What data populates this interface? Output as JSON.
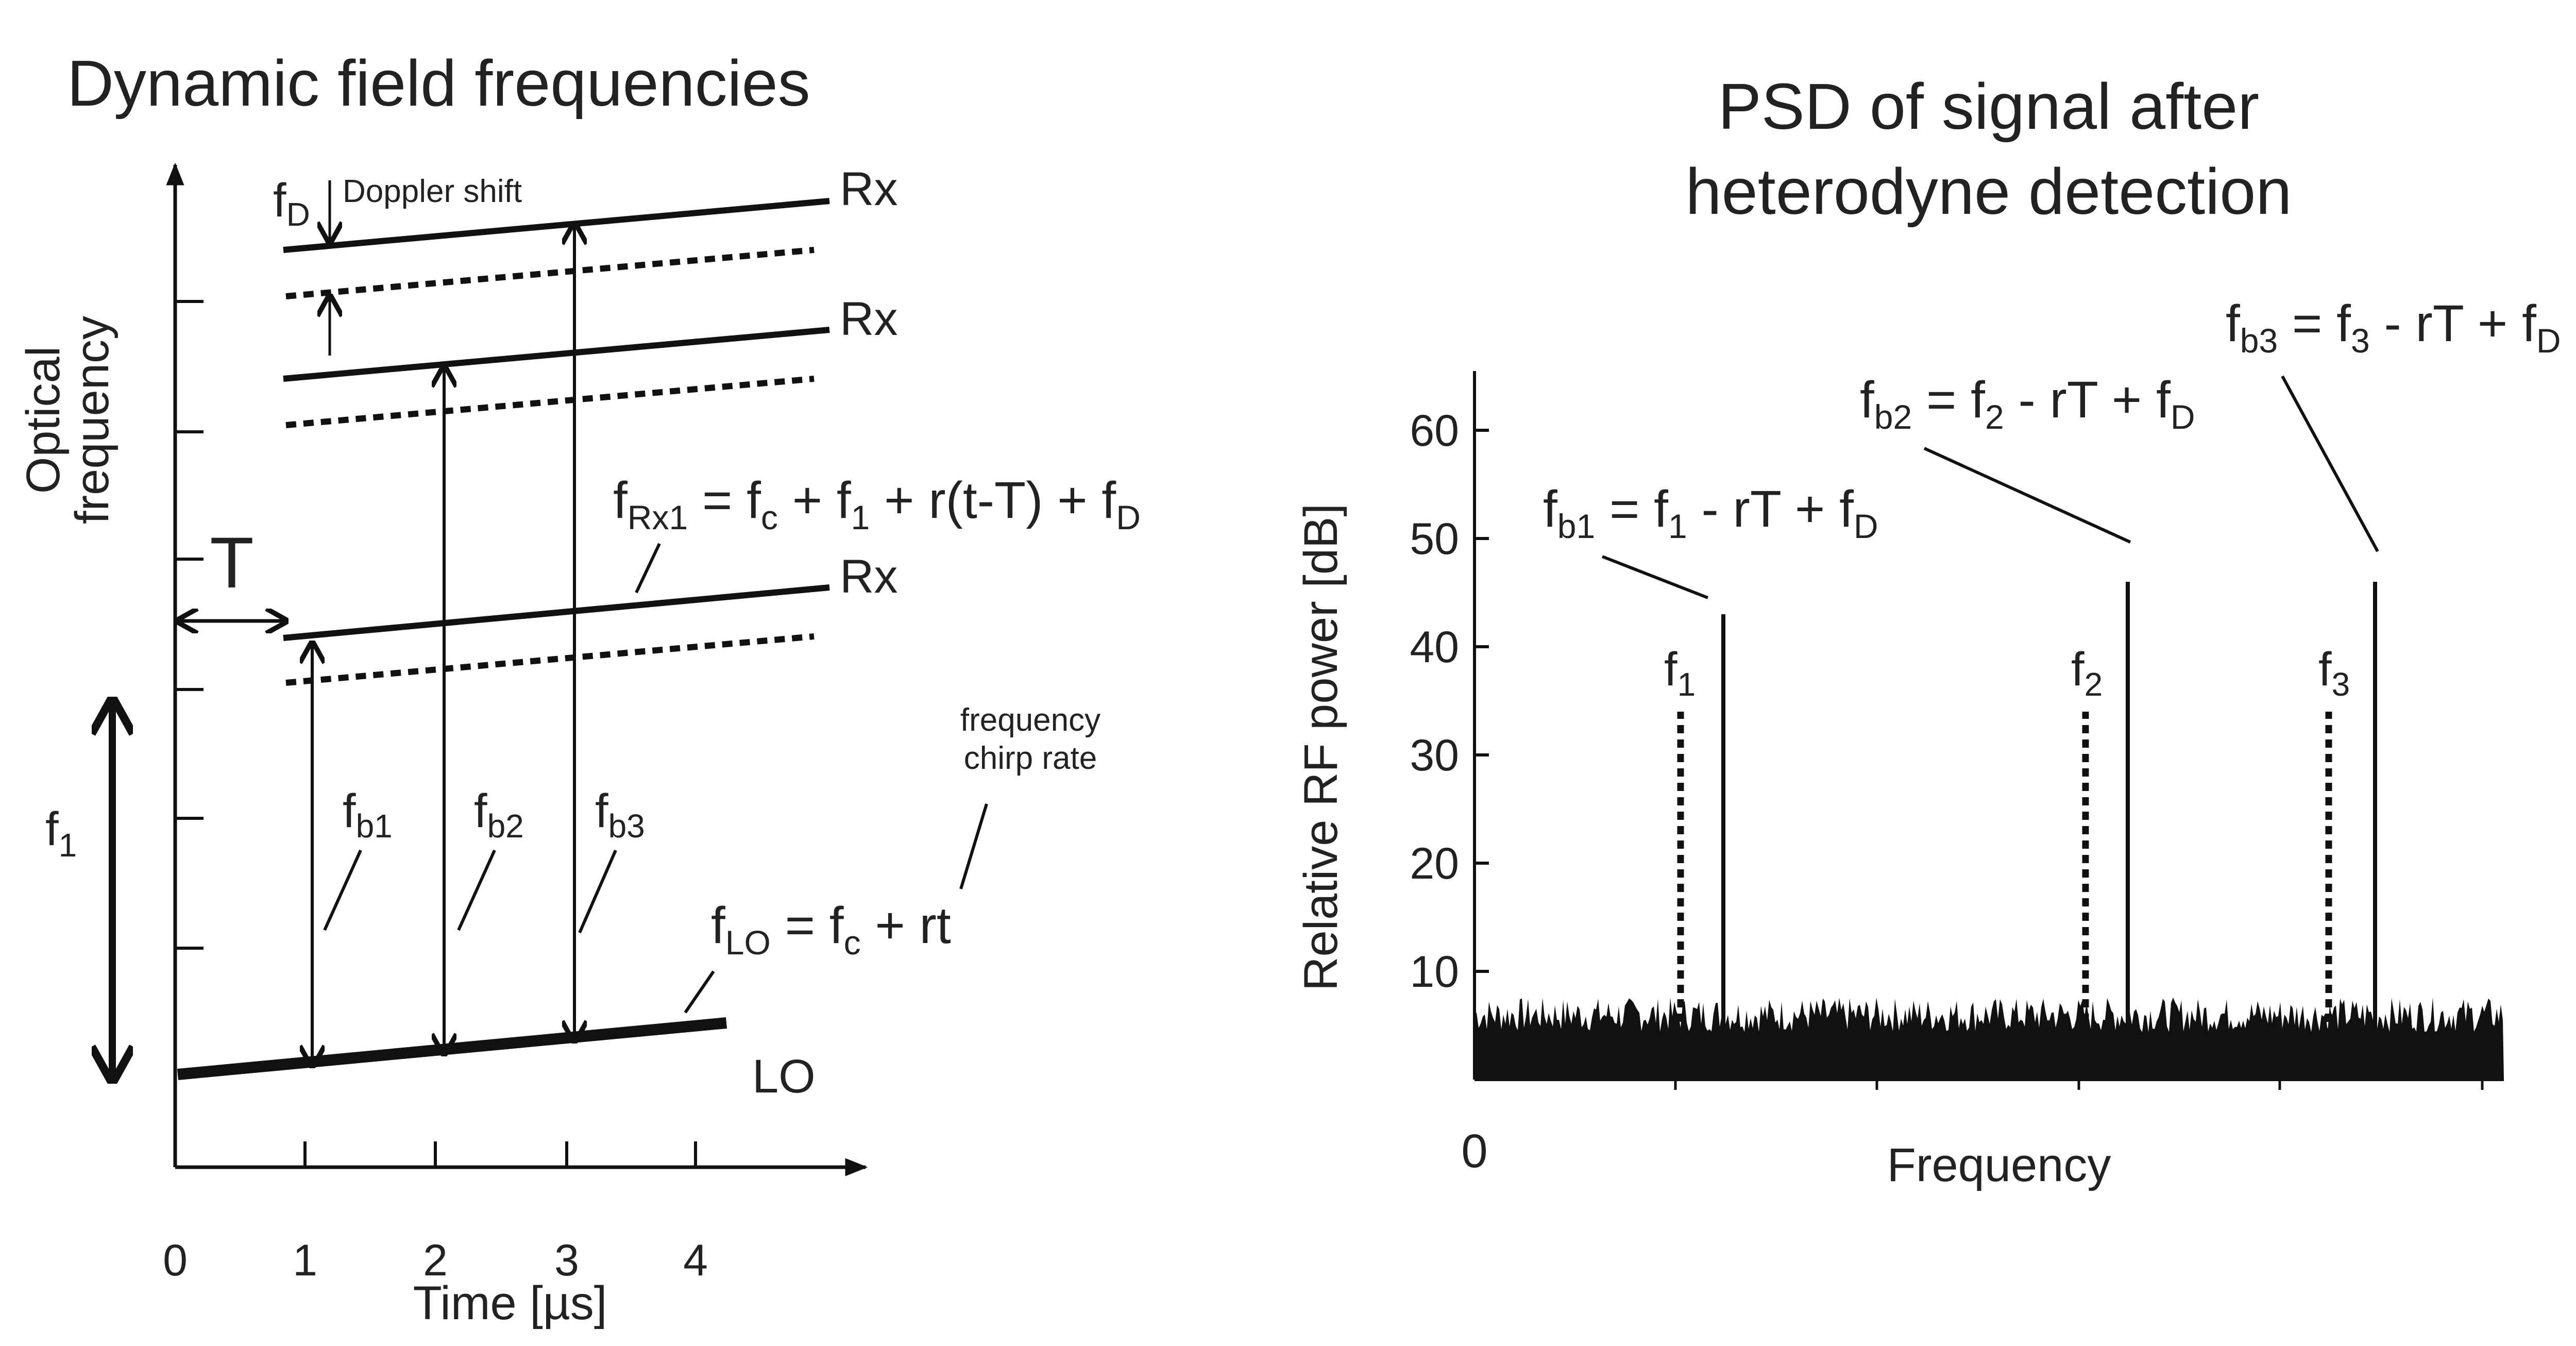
{
  "left_panel": {
    "title": "Dynamic field frequencies",
    "y_axis_label_lines": [
      "Optical",
      "frequency"
    ],
    "x_axis_label": "Time [µs]",
    "x_ticks": [
      "0",
      "1",
      "2",
      "3",
      "4"
    ],
    "delay_label": "T",
    "f1_label": "f",
    "f1_sub": "1",
    "rx_labels": [
      "Rx",
      "Rx",
      "Rx"
    ],
    "lo_label": "LO",
    "doppler_symbol": "f",
    "doppler_sub": "D",
    "doppler_text": "Doppler shift",
    "chirp_rate_lines": [
      "frequency",
      "chirp rate"
    ],
    "beat_labels": [
      {
        "base": "f",
        "sub": "b1"
      },
      {
        "base": "f",
        "sub": "b2"
      },
      {
        "base": "f",
        "sub": "b3"
      }
    ],
    "eq_rx1": {
      "parts": [
        {
          "t": "f"
        },
        {
          "t": "Rx1",
          "sub": true
        },
        {
          "t": " = f"
        },
        {
          "t": "c",
          "sub": true
        },
        {
          "t": " + f"
        },
        {
          "t": "1",
          "sub": true
        },
        {
          "t": " + r(t-T) + f"
        },
        {
          "t": "D",
          "sub": true
        }
      ]
    },
    "eq_lo": {
      "parts": [
        {
          "t": "f"
        },
        {
          "t": "LO",
          "sub": true
        },
        {
          "t": " = f"
        },
        {
          "t": "c",
          "sub": true
        },
        {
          "t": " + rt"
        }
      ]
    }
  },
  "right_panel": {
    "title_lines": [
      "PSD of signal after",
      "heterodyne detection"
    ],
    "y_axis_label": "Relative RF power [dB]",
    "x_axis_label": "Frequency",
    "x_tick_zero": "0",
    "y_ticks": [
      "10",
      "20",
      "30",
      "40",
      "50",
      "60"
    ],
    "peak_labels": [
      {
        "base": "f",
        "sub": "1"
      },
      {
        "base": "f",
        "sub": "2"
      },
      {
        "base": "f",
        "sub": "3"
      }
    ],
    "eq_b1": {
      "parts": [
        {
          "t": "f"
        },
        {
          "t": "b1",
          "sub": true
        },
        {
          "t": " = f"
        },
        {
          "t": "1",
          "sub": true
        },
        {
          "t": " - rT + f"
        },
        {
          "t": "D",
          "sub": true
        }
      ]
    },
    "eq_b2": {
      "parts": [
        {
          "t": "f"
        },
        {
          "t": "b2",
          "sub": true
        },
        {
          "t": " = f"
        },
        {
          "t": "2",
          "sub": true
        },
        {
          "t": " - rT + f"
        },
        {
          "t": "D",
          "sub": true
        }
      ]
    },
    "eq_b3": {
      "parts": [
        {
          "t": "f"
        },
        {
          "t": "b3",
          "sub": true
        },
        {
          "t": " = f"
        },
        {
          "t": "3",
          "sub": true
        },
        {
          "t": " - rT + f"
        },
        {
          "t": "D",
          "sub": true
        }
      ]
    }
  },
  "chart_data": {
    "type": "bar",
    "xlabel": "Frequency",
    "ylabel": "Relative RF power [dB]",
    "ylim": [
      0,
      65
    ],
    "yticks": [
      10,
      20,
      30,
      40,
      50,
      60
    ],
    "noise_floor_db": 6,
    "peaks": [
      {
        "label": "f_b1",
        "value": 43,
        "style": "solid"
      },
      {
        "label": "f_b2",
        "value": 46,
        "style": "solid"
      },
      {
        "label": "f_b3",
        "value": 46,
        "style": "solid"
      },
      {
        "label": "f_1",
        "value": 34,
        "style": "dotted"
      },
      {
        "label": "f_2",
        "value": 34,
        "style": "dotted"
      },
      {
        "label": "f_3",
        "value": 34,
        "style": "dotted"
      }
    ]
  },
  "colors": {
    "ink": "#111111",
    "text": "#222222",
    "background": "#ffffff"
  }
}
